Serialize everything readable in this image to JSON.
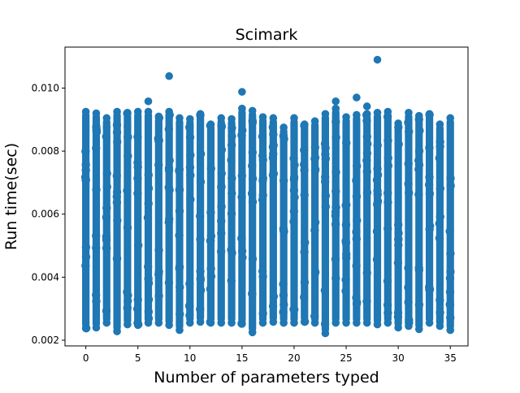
{
  "chart_data": {
    "type": "scatter",
    "title": "Scimark",
    "xlabel": "Number of parameters typed",
    "ylabel": "Run time(sec)",
    "xlim": [
      -2.0,
      36.7
    ],
    "ylim": [
      0.00182,
      0.0113
    ],
    "x_ticks": [
      0,
      5,
      10,
      15,
      20,
      25,
      30,
      35
    ],
    "x_tick_labels": [
      "0",
      "5",
      "10",
      "15",
      "20",
      "25",
      "30",
      "35"
    ],
    "y_ticks": [
      0.002,
      0.004,
      0.006,
      0.008,
      0.01
    ],
    "y_tick_labels": [
      "0.002",
      "0.004",
      "0.006",
      "0.008",
      "0.010"
    ],
    "grid": false,
    "legend": "none",
    "marker_color": "#1f77b4",
    "series": [
      {
        "x": [
          0,
          1,
          2,
          3,
          4,
          5,
          6,
          7,
          8,
          9,
          10,
          11,
          12,
          13,
          14,
          15,
          16,
          17,
          18,
          19,
          20,
          21,
          22,
          23,
          24,
          25,
          26,
          27,
          28,
          29,
          30,
          31,
          32,
          33,
          34,
          35
        ],
        "y_min": [
          0.00238,
          0.0024,
          0.00255,
          0.00228,
          0.0025,
          0.00248,
          0.00255,
          0.00255,
          0.00248,
          0.00232,
          0.00255,
          0.00258,
          0.00255,
          0.00255,
          0.00255,
          0.00252,
          0.00225,
          0.00255,
          0.00258,
          0.00255,
          0.00255,
          0.00258,
          0.00255,
          0.00222,
          0.00255,
          0.00255,
          0.00255,
          0.00255,
          0.0025,
          0.00255,
          0.0024,
          0.00245,
          0.00235,
          0.00255,
          0.00245,
          0.00232
        ],
        "y_max": [
          0.00925,
          0.0092,
          0.00905,
          0.00925,
          0.00922,
          0.00925,
          0.00925,
          0.0091,
          0.00925,
          0.00905,
          0.00902,
          0.00918,
          0.00885,
          0.00905,
          0.00902,
          0.00935,
          0.00928,
          0.00908,
          0.00905,
          0.00875,
          0.00905,
          0.00885,
          0.00895,
          0.00918,
          0.00935,
          0.00908,
          0.00915,
          0.00918,
          0.00922,
          0.00925,
          0.00888,
          0.00922,
          0.00912,
          0.00918,
          0.00885,
          0.00905
        ],
        "outliers": [
          [
            8,
            0.01038
          ],
          [
            6,
            0.00958
          ],
          [
            15,
            0.00988
          ],
          [
            24,
            0.00958
          ],
          [
            26,
            0.0097
          ],
          [
            27,
            0.00942
          ],
          [
            28,
            0.0109
          ],
          [
            2,
            0.00875
          ],
          [
            4,
            0.00878
          ]
        ]
      }
    ]
  }
}
